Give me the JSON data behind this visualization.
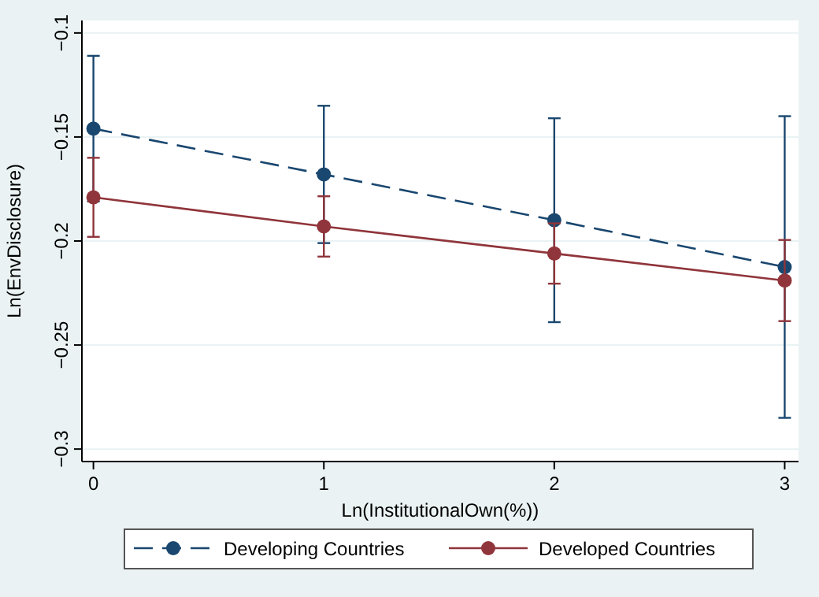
{
  "chart_data": {
    "type": "line",
    "xlabel": "Ln(InstitutionalOwn(%))",
    "ylabel": "Ln(EnvDisclosure)",
    "x": [
      0,
      1,
      2,
      3
    ],
    "series": [
      {
        "name": "Developing Countries",
        "color": "#1a476f",
        "line_style": "dashed",
        "values": [
          -0.146,
          -0.168,
          -0.19,
          -0.2125
        ],
        "errors": [
          0.035,
          0.033,
          0.049,
          0.0725
        ]
      },
      {
        "name": "Developed Countries",
        "color": "#90353b",
        "line_style": "solid",
        "values": [
          -0.179,
          -0.193,
          -0.206,
          -0.219
        ],
        "errors": [
          0.019,
          0.0145,
          0.0145,
          0.0195
        ]
      }
    ],
    "xlim": [
      -0.05,
      3.06
    ],
    "xticks": [
      0,
      1,
      2,
      3
    ],
    "ylim": [
      -0.306,
      -0.094
    ],
    "yticks": [
      {
        "value": -0.3,
        "label": "−0.3"
      },
      {
        "value": -0.25,
        "label": "−0.25"
      },
      {
        "value": -0.2,
        "label": "−0.2"
      },
      {
        "value": -0.15,
        "label": "−0.15"
      },
      {
        "value": -0.1,
        "label": "−0.1"
      }
    ],
    "grid": "y",
    "marker": "circle",
    "legend": "bottom"
  }
}
